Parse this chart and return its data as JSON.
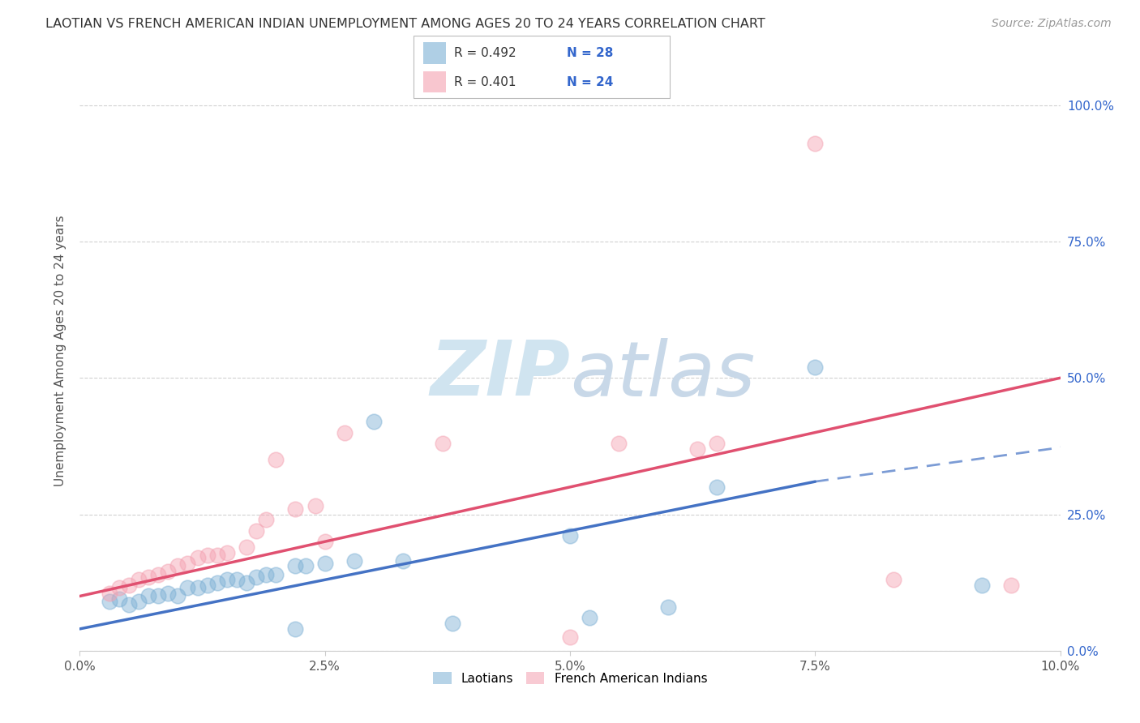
{
  "title": "LAOTIAN VS FRENCH AMERICAN INDIAN UNEMPLOYMENT AMONG AGES 20 TO 24 YEARS CORRELATION CHART",
  "source": "Source: ZipAtlas.com",
  "ylabel": "Unemployment Among Ages 20 to 24 years",
  "xlim": [
    0.0,
    0.1
  ],
  "ylim": [
    0.0,
    1.1
  ],
  "xtick_vals": [
    0.0,
    0.025,
    0.05,
    0.075,
    0.1
  ],
  "xtick_labels": [
    "0.0%",
    "2.5%",
    "5.0%",
    "7.5%",
    "10.0%"
  ],
  "ytick_vals": [
    0.0,
    0.25,
    0.5,
    0.75,
    1.0
  ],
  "right_ytick_labels": [
    "0.0%",
    "25.0%",
    "50.0%",
    "75.0%",
    "100.0%"
  ],
  "blue_color": "#7BAFD4",
  "pink_color": "#F4A0B0",
  "blue_line_color": "#4472C4",
  "pink_line_color": "#E05070",
  "title_color": "#333333",
  "source_color": "#999999",
  "watermark_text": "ZIPatlas",
  "watermark_color": "#D0E4F0",
  "blue_scatter": [
    [
      0.003,
      0.09
    ],
    [
      0.004,
      0.095
    ],
    [
      0.005,
      0.085
    ],
    [
      0.006,
      0.09
    ],
    [
      0.007,
      0.1
    ],
    [
      0.008,
      0.1
    ],
    [
      0.009,
      0.105
    ],
    [
      0.01,
      0.1
    ],
    [
      0.011,
      0.115
    ],
    [
      0.012,
      0.115
    ],
    [
      0.013,
      0.12
    ],
    [
      0.014,
      0.125
    ],
    [
      0.015,
      0.13
    ],
    [
      0.016,
      0.13
    ],
    [
      0.017,
      0.125
    ],
    [
      0.018,
      0.135
    ],
    [
      0.019,
      0.14
    ],
    [
      0.02,
      0.14
    ],
    [
      0.022,
      0.155
    ],
    [
      0.023,
      0.155
    ],
    [
      0.025,
      0.16
    ],
    [
      0.028,
      0.165
    ],
    [
      0.03,
      0.42
    ],
    [
      0.033,
      0.165
    ],
    [
      0.022,
      0.04
    ],
    [
      0.038,
      0.05
    ],
    [
      0.05,
      0.21
    ],
    [
      0.052,
      0.06
    ],
    [
      0.06,
      0.08
    ],
    [
      0.065,
      0.3
    ],
    [
      0.075,
      0.52
    ],
    [
      0.092,
      0.12
    ]
  ],
  "pink_scatter": [
    [
      0.003,
      0.105
    ],
    [
      0.004,
      0.115
    ],
    [
      0.005,
      0.12
    ],
    [
      0.006,
      0.13
    ],
    [
      0.007,
      0.135
    ],
    [
      0.008,
      0.14
    ],
    [
      0.009,
      0.145
    ],
    [
      0.01,
      0.155
    ],
    [
      0.011,
      0.16
    ],
    [
      0.012,
      0.17
    ],
    [
      0.013,
      0.175
    ],
    [
      0.014,
      0.175
    ],
    [
      0.015,
      0.18
    ],
    [
      0.017,
      0.19
    ],
    [
      0.018,
      0.22
    ],
    [
      0.019,
      0.24
    ],
    [
      0.02,
      0.35
    ],
    [
      0.022,
      0.26
    ],
    [
      0.024,
      0.265
    ],
    [
      0.025,
      0.2
    ],
    [
      0.027,
      0.4
    ],
    [
      0.037,
      0.38
    ],
    [
      0.05,
      0.025
    ],
    [
      0.055,
      0.38
    ],
    [
      0.063,
      0.37
    ],
    [
      0.065,
      0.38
    ],
    [
      0.075,
      0.93
    ],
    [
      0.083,
      0.13
    ],
    [
      0.095,
      0.12
    ]
  ],
  "blue_line_solid": [
    [
      0.0,
      0.04
    ],
    [
      0.075,
      0.31
    ]
  ],
  "blue_line_dashed": [
    [
      0.075,
      0.31
    ],
    [
      0.105,
      0.385
    ]
  ],
  "pink_line": [
    [
      0.0,
      0.1
    ],
    [
      0.1,
      0.5
    ]
  ]
}
